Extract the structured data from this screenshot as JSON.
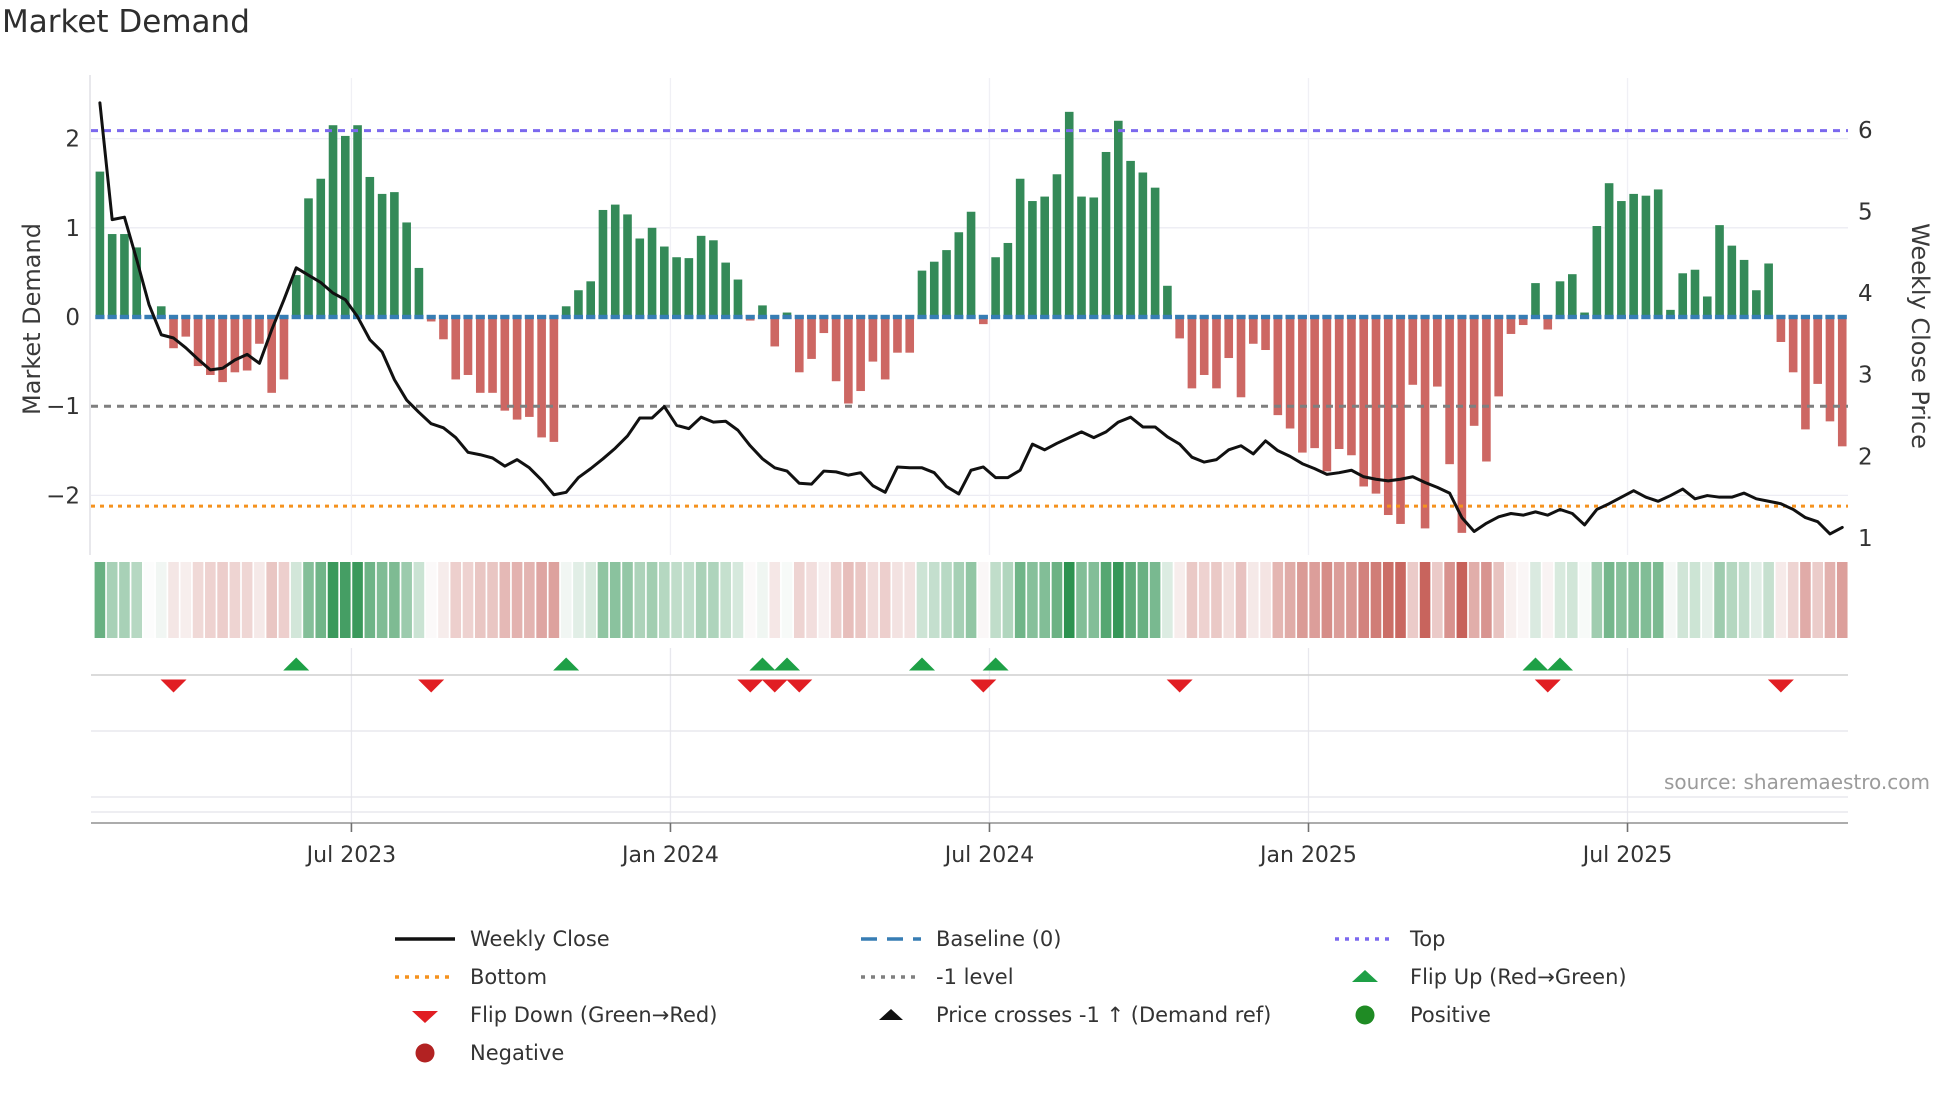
{
  "header": {
    "title": "Market Demand"
  },
  "axes": {
    "left_label": "Market Demand",
    "right_label": "Weekly Close Price",
    "left_ticks": [
      2,
      1,
      0,
      -1,
      -2
    ],
    "right_ticks": [
      6,
      5,
      4,
      3,
      2,
      1
    ],
    "x_ticks": [
      "Jul 2023",
      "Jan 2024",
      "Jul 2024",
      "Jan 2025",
      "Jul 2025"
    ]
  },
  "source": "source: sharemaestro.com",
  "colors": {
    "bar_positive": "#348a58",
    "bar_negative": "#cd6763",
    "baseline_blue": "#377db4",
    "top_purple": "#7b68ee",
    "minus1_gray": "#7f7f7f",
    "bottom_orange": "#f5921e",
    "price_line": "#111111",
    "flip_up_green": "#1ea046",
    "flip_down_red": "#e11e23",
    "positive_dot": "#1f8b24",
    "negative_dot": "#b22222",
    "heat_green": "#1f8b45",
    "heat_red": "#c65f58"
  },
  "legend": {
    "columns": [
      {
        "x": 392,
        "items": [
          {
            "swatch": "line_black",
            "label": "Weekly Close"
          },
          {
            "swatch": "dotted_orange",
            "label": "Bottom"
          },
          {
            "swatch": "tri_down_red",
            "label": "Flip Down (Green→Red)"
          },
          {
            "swatch": "circle_darkred",
            "label": "Negative"
          }
        ]
      },
      {
        "x": 858,
        "items": [
          {
            "swatch": "dashed_blue",
            "label": "Baseline (0)"
          },
          {
            "swatch": "dotted_gray",
            "label": "-1 level"
          },
          {
            "swatch": "tri_up_black",
            "label": "Price crosses -1 ↑ (Demand ref)"
          }
        ]
      },
      {
        "x": 1332,
        "items": [
          {
            "swatch": "dotted_purple",
            "label": "Top"
          },
          {
            "swatch": "tri_up_green",
            "label": "Flip Up (Red→Green)"
          },
          {
            "swatch": "circle_green",
            "label": "Positive"
          }
        ]
      }
    ]
  },
  "chart_data": {
    "type": "bar+line",
    "title": "Market Demand",
    "ylabel_left": "Market Demand",
    "ylabel_right": "Weekly Close Price",
    "weeks": 143,
    "x_tick_labels": [
      "Jul 2023",
      "Jan 2024",
      "Jul 2024",
      "Jan 2025",
      "Jul 2025"
    ],
    "x_tick_weeks": [
      20.5,
      46.5,
      72.5,
      98.5,
      124.5
    ],
    "demand_ylim": [
      -2.7,
      2.7
    ],
    "price_ylim": [
      1,
      6
    ],
    "top_level": 2.09,
    "baseline_level": 0,
    "minus1_level": -1,
    "bottom_level": -2.12,
    "demand": [
      1.63,
      0.93,
      0.93,
      0.78,
      0.0,
      0.12,
      -0.35,
      -0.22,
      -0.55,
      -0.65,
      -0.73,
      -0.62,
      -0.6,
      -0.3,
      -0.85,
      -0.7,
      0.47,
      1.33,
      1.55,
      2.15,
      2.03,
      2.15,
      1.57,
      1.38,
      1.4,
      1.06,
      0.55,
      -0.05,
      -0.25,
      -0.7,
      -0.65,
      -0.85,
      -0.85,
      -1.05,
      -1.15,
      -1.12,
      -1.35,
      -1.4,
      0.12,
      0.3,
      0.4,
      1.2,
      1.26,
      1.15,
      0.88,
      1.0,
      0.79,
      0.67,
      0.66,
      0.91,
      0.86,
      0.61,
      0.42,
      -0.04,
      0.13,
      -0.33,
      0.05,
      -0.62,
      -0.47,
      -0.18,
      -0.72,
      -0.97,
      -0.83,
      -0.5,
      -0.7,
      -0.4,
      -0.4,
      0.52,
      0.62,
      0.75,
      0.95,
      1.18,
      -0.08,
      0.67,
      0.83,
      1.55,
      1.3,
      1.35,
      1.6,
      2.3,
      1.35,
      1.34,
      1.85,
      2.2,
      1.75,
      1.62,
      1.45,
      0.35,
      -0.24,
      -0.8,
      -0.65,
      -0.8,
      -0.46,
      -0.9,
      -0.3,
      -0.37,
      -1.1,
      -1.25,
      -1.52,
      -1.47,
      -1.73,
      -1.48,
      -1.55,
      -1.9,
      -1.98,
      -2.22,
      -2.32,
      -0.76,
      -2.37,
      -0.78,
      -1.65,
      -2.42,
      -1.22,
      -1.62,
      -0.89,
      -0.19,
      -0.09,
      0.38,
      -0.14,
      0.4,
      0.48,
      0.05,
      1.02,
      1.5,
      1.3,
      1.38,
      1.36,
      1.43,
      0.08,
      0.49,
      0.53,
      0.23,
      1.03,
      0.8,
      0.64,
      0.3,
      0.6,
      -0.28,
      -0.62,
      -1.26,
      -0.75,
      -1.17,
      -1.45
    ],
    "price": [
      6.33,
      4.9,
      4.93,
      4.41,
      3.86,
      3.49,
      3.45,
      3.33,
      3.19,
      3.06,
      3.08,
      3.18,
      3.25,
      3.14,
      3.55,
      3.92,
      4.31,
      4.22,
      4.13,
      4.0,
      3.92,
      3.71,
      3.43,
      3.28,
      2.94,
      2.69,
      2.54,
      2.4,
      2.35,
      2.23,
      2.05,
      2.02,
      1.98,
      1.88,
      1.96,
      1.86,
      1.71,
      1.53,
      1.56,
      1.74,
      1.85,
      1.97,
      2.1,
      2.25,
      2.47,
      2.47,
      2.61,
      2.38,
      2.34,
      2.48,
      2.42,
      2.43,
      2.32,
      2.13,
      1.97,
      1.86,
      1.82,
      1.67,
      1.66,
      1.82,
      1.81,
      1.77,
      1.8,
      1.64,
      1.56,
      1.87,
      1.86,
      1.86,
      1.8,
      1.63,
      1.54,
      1.83,
      1.87,
      1.74,
      1.74,
      1.83,
      2.15,
      2.08,
      2.16,
      2.23,
      2.3,
      2.23,
      2.3,
      2.42,
      2.48,
      2.36,
      2.36,
      2.24,
      2.15,
      1.99,
      1.93,
      1.96,
      2.08,
      2.13,
      2.03,
      2.19,
      2.07,
      2.0,
      1.91,
      1.85,
      1.78,
      1.8,
      1.83,
      1.75,
      1.72,
      1.7,
      1.72,
      1.75,
      1.68,
      1.62,
      1.55,
      1.25,
      1.08,
      1.18,
      1.26,
      1.3,
      1.28,
      1.32,
      1.28,
      1.35,
      1.3,
      1.16,
      1.35,
      1.42,
      1.5,
      1.58,
      1.5,
      1.45,
      1.52,
      1.6,
      1.48,
      1.52,
      1.5,
      1.5,
      1.55,
      1.48,
      1.45,
      1.42,
      1.35,
      1.25,
      1.2,
      1.05,
      1.13
    ],
    "flip_up_weeks": [
      16,
      38,
      54,
      56,
      67,
      73,
      117,
      119
    ],
    "flip_down_weeks": [
      6,
      27,
      53,
      55,
      57,
      72,
      88,
      118,
      137
    ],
    "price_cross_weeks": []
  }
}
